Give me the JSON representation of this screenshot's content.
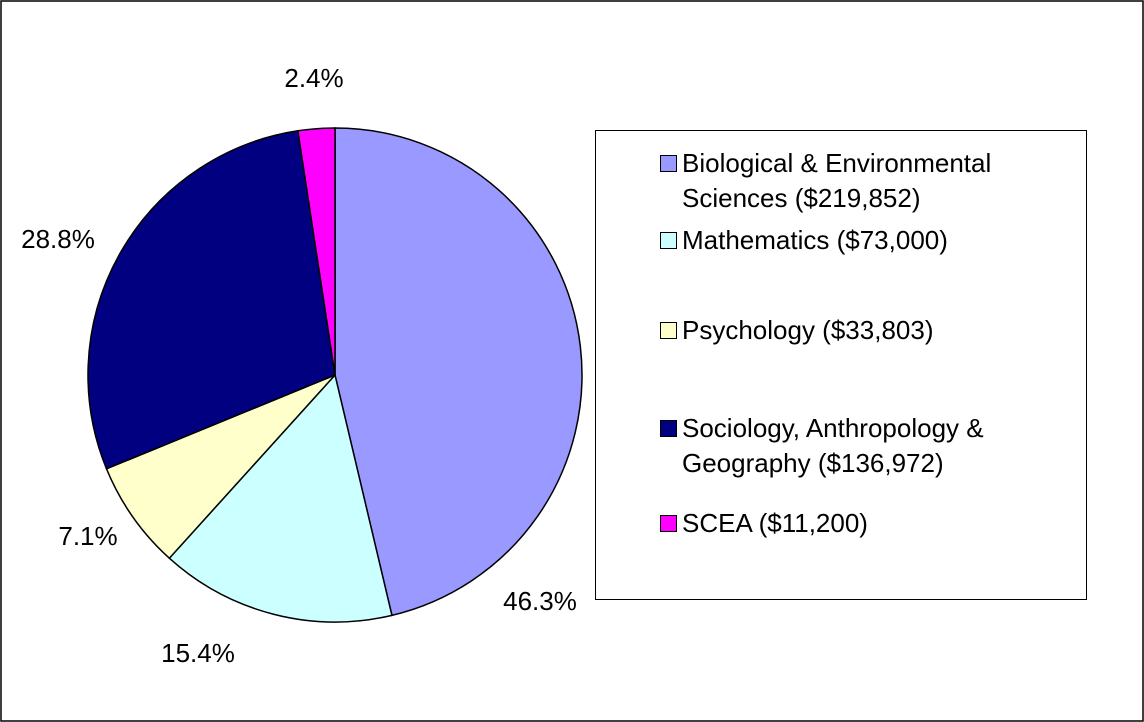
{
  "chart_data": {
    "type": "pie",
    "categories": [
      "Biological & Environmental Sciences ($219,852)",
      "Mathematics ($73,000)",
      "Psychology ($33,803)",
      "Sociology, Anthropology & Geography ($136,972)",
      "SCEA ($11,200)"
    ],
    "values": [
      46.3,
      15.4,
      7.1,
      28.8,
      2.4
    ],
    "value_labels": [
      "46.3%",
      "15.4%",
      "7.1%",
      "28.8%",
      "2.4%"
    ],
    "colors": [
      "#9999ff",
      "#ccffff",
      "#ffffcc",
      "#000080",
      "#ff00ff"
    ],
    "legend": "right"
  }
}
